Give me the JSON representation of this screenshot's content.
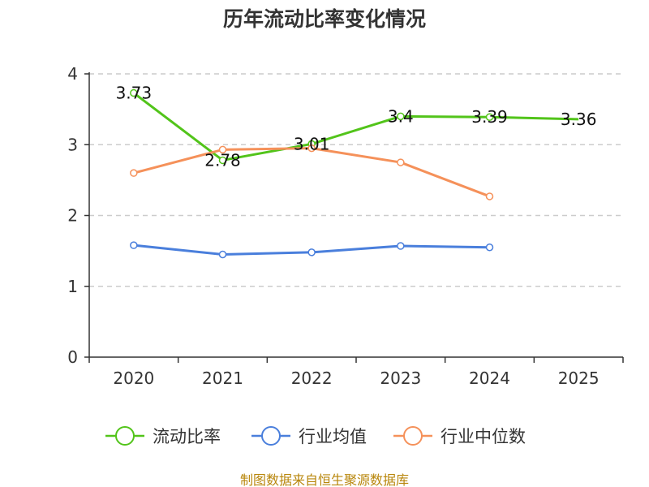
{
  "chart_data": {
    "type": "line",
    "title": "历年流动比率变化情况",
    "categories": [
      "2020",
      "2021",
      "2022",
      "2023",
      "2024",
      "2025"
    ],
    "y_ticks": [
      "0",
      "1",
      "2",
      "3",
      "4"
    ],
    "ylim": [
      0,
      4
    ],
    "grid": true,
    "legend_position": "bottom",
    "series": [
      {
        "name": "流动比率",
        "color": "#52c41a",
        "values": [
          3.73,
          2.78,
          3.01,
          3.4,
          3.39,
          3.36
        ],
        "labels": [
          "3.73",
          "2.78",
          "3.01",
          "3.4",
          "3.39",
          "3.36"
        ],
        "show_points": [
          true,
          true,
          true,
          true,
          true,
          false
        ]
      },
      {
        "name": "行业均值",
        "color": "#4a7fdc",
        "values": [
          1.58,
          1.45,
          1.48,
          1.57,
          1.55,
          null
        ],
        "labels": [],
        "show_points": [
          true,
          true,
          true,
          true,
          true,
          false
        ]
      },
      {
        "name": "行业中位数",
        "color": "#f5915a",
        "values": [
          2.6,
          2.93,
          2.95,
          2.75,
          2.27,
          null
        ],
        "labels": [],
        "show_points": [
          true,
          true,
          true,
          true,
          true,
          false
        ]
      }
    ],
    "source": "制图数据来自恒生聚源数据库"
  }
}
